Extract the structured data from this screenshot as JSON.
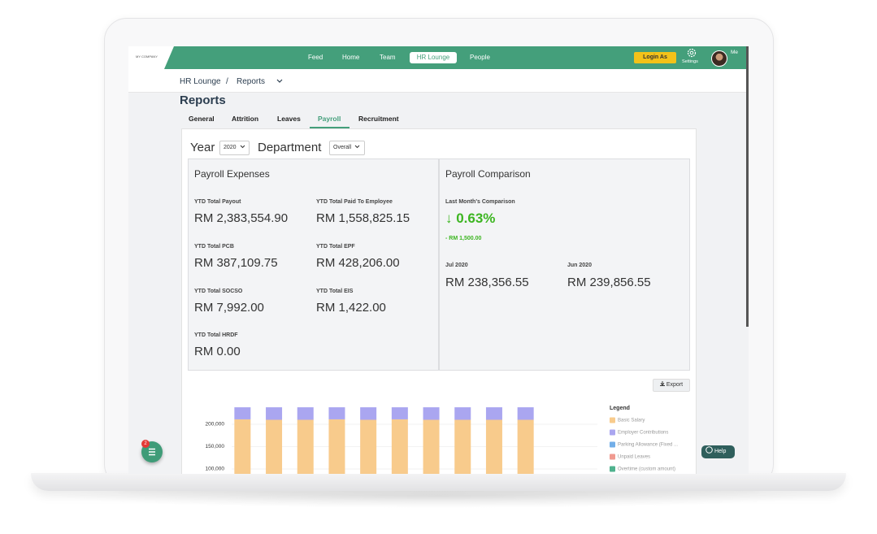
{
  "logo": "MY COMPANY",
  "nav": {
    "items": [
      "Feed",
      "Home",
      "Team",
      "HR Lounge",
      "People"
    ],
    "login_as": "Login As",
    "settings": "Settings",
    "me": "Me"
  },
  "breadcrumb": {
    "parent": "HR Lounge",
    "separator": "/",
    "current": "Reports"
  },
  "page_title": "Reports",
  "tabs": [
    "General",
    "Attrition",
    "Leaves",
    "Payroll",
    "Recruitment"
  ],
  "filters": {
    "year_label": "Year",
    "year": "2020",
    "department_label": "Department",
    "department": "Overall"
  },
  "payroll_expenses": {
    "title": "Payroll Expenses",
    "items": [
      {
        "label": "YTD Total Payout",
        "value": "RM 2,383,554.90"
      },
      {
        "label": "YTD Total Paid To Employee",
        "value": "RM 1,558,825.15"
      },
      {
        "label": "YTD Total PCB",
        "value": "RM 387,109.75"
      },
      {
        "label": "YTD Total EPF",
        "value": "RM 428,206.00"
      },
      {
        "label": "YTD Total SOCSO",
        "value": "RM 7,992.00"
      },
      {
        "label": "YTD Total EIS",
        "value": "RM 1,422.00"
      },
      {
        "label": "YTD Total HRDF",
        "value": "RM 0.00"
      }
    ]
  },
  "payroll_comparison": {
    "title": "Payroll Comparison",
    "subtitle": "Last Month's Comparison",
    "change": "↓ 0.63%",
    "difference": "- RM 1,500.00",
    "months": [
      {
        "label": "Jul 2020",
        "value": "RM 238,356.55"
      },
      {
        "label": "Jun 2020",
        "value": "RM 239,856.55"
      }
    ]
  },
  "export": "Export",
  "chart_data": {
    "type": "stacked_bar",
    "legend_title": "Legend",
    "legend": "right",
    "categories": [
      null,
      null,
      null,
      null,
      null,
      null,
      null,
      null,
      null,
      null
    ],
    "series": [
      {
        "name": "Basic Salary",
        "color": "#f8cb8c",
        "values": [
          211000,
          210000,
          210000,
          211000,
          210000,
          211000,
          210000,
          210000,
          210000,
          210000
        ]
      },
      {
        "name": "Employer Contributions",
        "color": "#aaa6f0",
        "values": [
          27000,
          28000,
          28000,
          27000,
          28000,
          27000,
          28000,
          28000,
          28000,
          28000
        ]
      },
      {
        "name": "Parking Allowance (Fixed ...",
        "color": "#72aee8",
        "values": [
          null,
          null,
          null,
          null,
          null,
          null,
          null,
          null,
          null,
          null
        ]
      },
      {
        "name": "Unpaid Leaves",
        "color": "#f09a90",
        "values": [
          null,
          null,
          null,
          null,
          null,
          null,
          null,
          null,
          null,
          null
        ]
      },
      {
        "name": "Overtime (custom amount)",
        "color": "#4fb28e",
        "values": [
          null,
          null,
          null,
          null,
          null,
          null,
          null,
          null,
          null,
          null
        ]
      }
    ],
    "ylim": [
      0,
      250000
    ],
    "yticks": [
      {
        "value": 100000,
        "label": "100,000"
      },
      {
        "value": 150000,
        "label": "150,000"
      },
      {
        "value": 200000,
        "label": "200,000"
      }
    ],
    "grid": true
  },
  "notification_count": "2",
  "help": "Help"
}
